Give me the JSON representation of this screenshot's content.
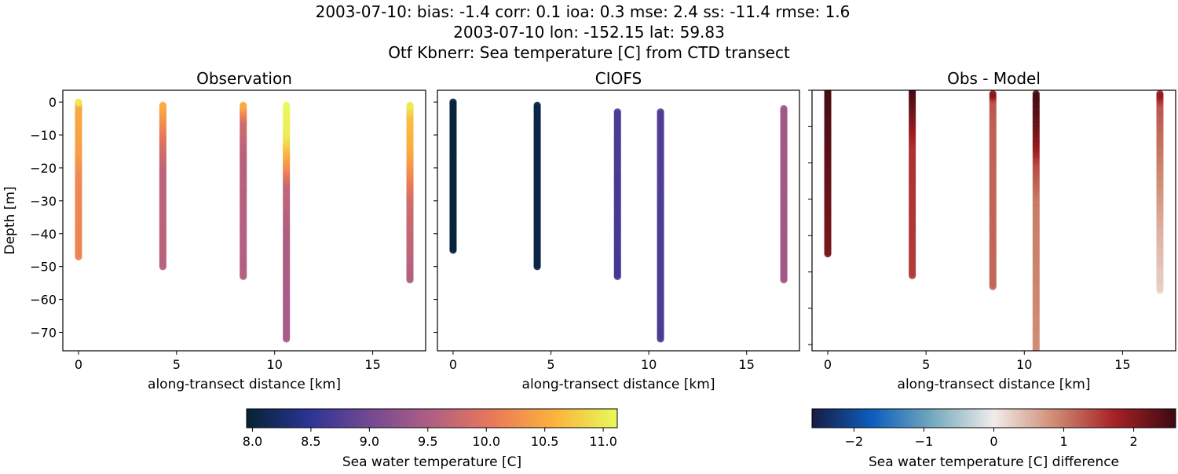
{
  "title_lines": [
    "2003-07-10: bias: -1.4  corr: 0.1  ioa: 0.3  mse: 2.4  ss: -11.4  rmse: 1.6",
    "2003-07-10 lon: -152.15 lat: 59.83",
    "Otf Kbnerr: Sea temperature [C] from CTD transect"
  ],
  "chart_data": [
    {
      "type": "scatter",
      "title": "Observation",
      "xlabel": "along-transect distance [km]",
      "ylabel": "Depth [m]",
      "xlim": [
        -0.8,
        17.7
      ],
      "ylim": [
        -75.6,
        3.6
      ],
      "xticks": [
        0,
        5,
        10,
        15
      ],
      "yticks": [
        0,
        -10,
        -20,
        -30,
        -40,
        -50,
        -60,
        -70
      ],
      "colormap": "thermal",
      "clim": [
        7.95,
        11.12
      ],
      "casts": [
        {
          "x": 0.0,
          "profile": [
            [
              0,
              11.0
            ],
            [
              -1,
              10.5
            ],
            [
              -15,
              10.4
            ],
            [
              -22,
              10.2
            ],
            [
              -47,
              10.15
            ]
          ]
        },
        {
          "x": 4.3,
          "profile": [
            [
              -1,
              10.5
            ],
            [
              -5,
              10.3
            ],
            [
              -12,
              9.9
            ],
            [
              -20,
              9.65
            ],
            [
              -50,
              9.6
            ]
          ]
        },
        {
          "x": 8.4,
          "profile": [
            [
              -1,
              10.5
            ],
            [
              -3,
              10.2
            ],
            [
              -6,
              9.8
            ],
            [
              -15,
              9.6
            ],
            [
              -53,
              9.55
            ]
          ]
        },
        {
          "x": 10.6,
          "profile": [
            [
              -1,
              11.1
            ],
            [
              -10,
              11.0
            ],
            [
              -15,
              10.6
            ],
            [
              -20,
              10.2
            ],
            [
              -25,
              9.7
            ],
            [
              -40,
              9.5
            ],
            [
              -72,
              9.45
            ]
          ]
        },
        {
          "x": 16.9,
          "profile": [
            [
              -1,
              11.0
            ],
            [
              -4,
              10.7
            ],
            [
              -15,
              10.5
            ],
            [
              -22,
              10.2
            ],
            [
              -30,
              9.8
            ],
            [
              -54,
              9.55
            ]
          ]
        }
      ]
    },
    {
      "type": "scatter",
      "title": "CIOFS",
      "xlabel": "along-transect distance [km]",
      "xlim": [
        -0.8,
        17.7
      ],
      "ylim": [
        -75.6,
        3.6
      ],
      "xticks": [
        0,
        5,
        10,
        15
      ],
      "colormap": "thermal",
      "clim": [
        7.95,
        11.12
      ],
      "casts": [
        {
          "x": 0.0,
          "profile": [
            [
              0,
              8.0
            ],
            [
              -45,
              8.0
            ]
          ]
        },
        {
          "x": 4.3,
          "profile": [
            [
              -1,
              8.05
            ],
            [
              -50,
              8.05
            ]
          ]
        },
        {
          "x": 8.4,
          "profile": [
            [
              -3,
              8.7
            ],
            [
              -53,
              8.65
            ]
          ]
        },
        {
          "x": 10.6,
          "profile": [
            [
              -3,
              8.75
            ],
            [
              -72,
              8.7
            ]
          ]
        },
        {
          "x": 16.9,
          "profile": [
            [
              -2,
              9.4
            ],
            [
              -54,
              9.4
            ]
          ]
        }
      ]
    },
    {
      "type": "scatter",
      "title": "Obs - Model",
      "xlabel": "along-transect distance [km]",
      "xlim": [
        -0.8,
        17.7
      ],
      "ylim": [
        -71.7,
        0
      ],
      "xticks": [
        0,
        5,
        10,
        15
      ],
      "yticks": [
        0,
        -10,
        -20,
        -30,
        -40,
        -50,
        -60,
        -70
      ],
      "colormap": "balance",
      "clim": [
        -2.6,
        2.6
      ],
      "casts": [
        {
          "x": 0.0,
          "profile": [
            [
              0,
              2.5
            ],
            [
              -20,
              2.3
            ],
            [
              -45,
              2.1
            ]
          ]
        },
        {
          "x": 4.3,
          "profile": [
            [
              0,
              2.5
            ],
            [
              -5,
              2.2
            ],
            [
              -10,
              1.9
            ],
            [
              -15,
              1.6
            ],
            [
              -51,
              1.5
            ]
          ]
        },
        {
          "x": 8.4,
          "profile": [
            [
              -1,
              2.0
            ],
            [
              -3,
              1.3
            ],
            [
              -10,
              1.2
            ],
            [
              -54,
              1.15
            ]
          ]
        },
        {
          "x": 10.6,
          "profile": [
            [
              -1,
              2.5
            ],
            [
              -10,
              2.2
            ],
            [
              -15,
              1.9
            ],
            [
              -20,
              1.4
            ],
            [
              -30,
              1.0
            ],
            [
              -72,
              0.85
            ]
          ]
        },
        {
          "x": 16.9,
          "profile": [
            [
              -1,
              1.9
            ],
            [
              -4,
              1.3
            ],
            [
              -20,
              0.95
            ],
            [
              -40,
              0.5
            ],
            [
              -55,
              0.25
            ]
          ]
        }
      ]
    }
  ],
  "colorbars": [
    {
      "label": "Sea water temperature [C]",
      "range": [
        7.95,
        11.12
      ],
      "ticks": [
        "8.0",
        "8.5",
        "9.0",
        "9.5",
        "10.0",
        "10.5",
        "11.0"
      ],
      "colormap": "thermal"
    },
    {
      "label": "Sea water temperature [C] difference",
      "range": [
        -2.6,
        2.6
      ],
      "ticks": [
        "−2",
        "−1",
        "0",
        "1",
        "2"
      ],
      "colormap": "balance"
    }
  ],
  "colormaps": {
    "thermal": [
      "#042333",
      "#2c3395",
      "#744992",
      "#b15f82",
      "#eb7958",
      "#fbb43d",
      "#e8fa5b"
    ],
    "balance": [
      "#181c43",
      "#0c5ebe",
      "#75aabe",
      "#f1eceb",
      "#d08b73",
      "#a52125",
      "#3c0912"
    ]
  }
}
